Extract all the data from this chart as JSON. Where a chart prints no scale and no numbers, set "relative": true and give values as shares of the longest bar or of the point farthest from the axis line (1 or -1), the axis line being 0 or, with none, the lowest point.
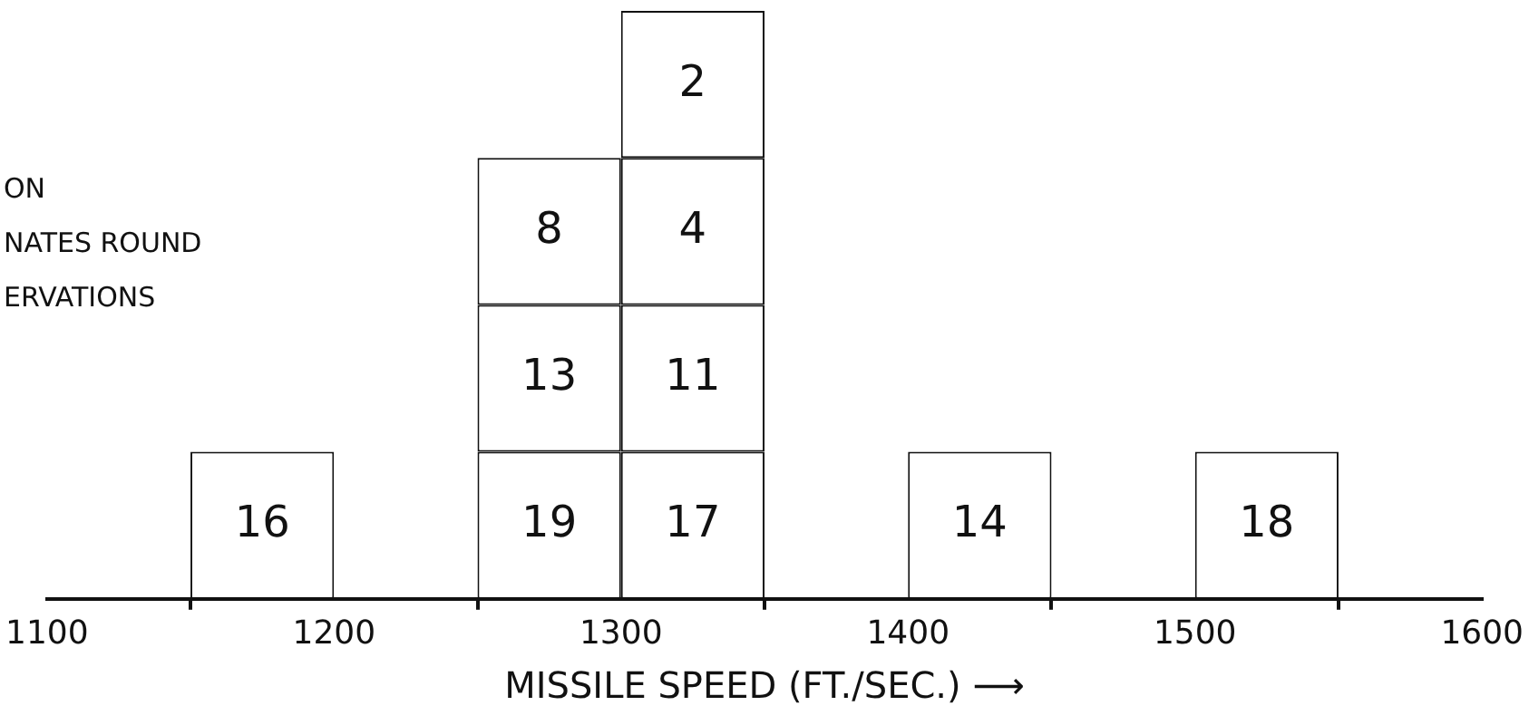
{
  "chart_data": {
    "type": "bar",
    "relative": true,
    "stacked": true,
    "xlabel": "MISSILE SPEED (FT./SEC.) ⟶",
    "x": [
      1175,
      1275,
      1325,
      1425,
      1525
    ],
    "series": [
      {
        "color": "#ffffff",
        "values": [
          0.25,
          0.25,
          0.25,
          0.25,
          0.25
        ]
      },
      {
        "color": "#ffffff",
        "values": [
          null,
          0.25,
          0.25,
          null,
          null
        ]
      },
      {
        "color": "#ffffff",
        "values": [
          null,
          0.25,
          0.25,
          null,
          null
        ]
      },
      {
        "color": "#ffffff",
        "values": [
          null,
          null,
          0.25,
          null,
          null
        ]
      }
    ],
    "xlim": [
      1100,
      1600
    ],
    "xticks": [
      1100,
      1200,
      1300,
      1400,
      1500,
      1600
    ],
    "annotations": [
      "ON",
      "NATES ROUND",
      "ERVATIONS",
      {
        "text": "16",
        "x": 1175,
        "y": 0.25
      },
      {
        "text": "19",
        "x": 1275,
        "y": 0.25
      },
      {
        "text": "13",
        "x": 1275,
        "y": 0.5
      },
      {
        "text": "8",
        "x": 1275,
        "y": 0.75
      },
      {
        "text": "17",
        "x": 1325,
        "y": 0.25
      },
      {
        "text": "11",
        "x": 1325,
        "y": 0.5
      },
      {
        "text": "4",
        "x": 1325,
        "y": 0.75
      },
      {
        "text": "2",
        "x": 1325,
        "y": 1
      },
      {
        "text": "14",
        "x": 1425,
        "y": 0.25
      },
      {
        "text": "18",
        "x": 1525,
        "y": 0.25
      }
    ]
  }
}
